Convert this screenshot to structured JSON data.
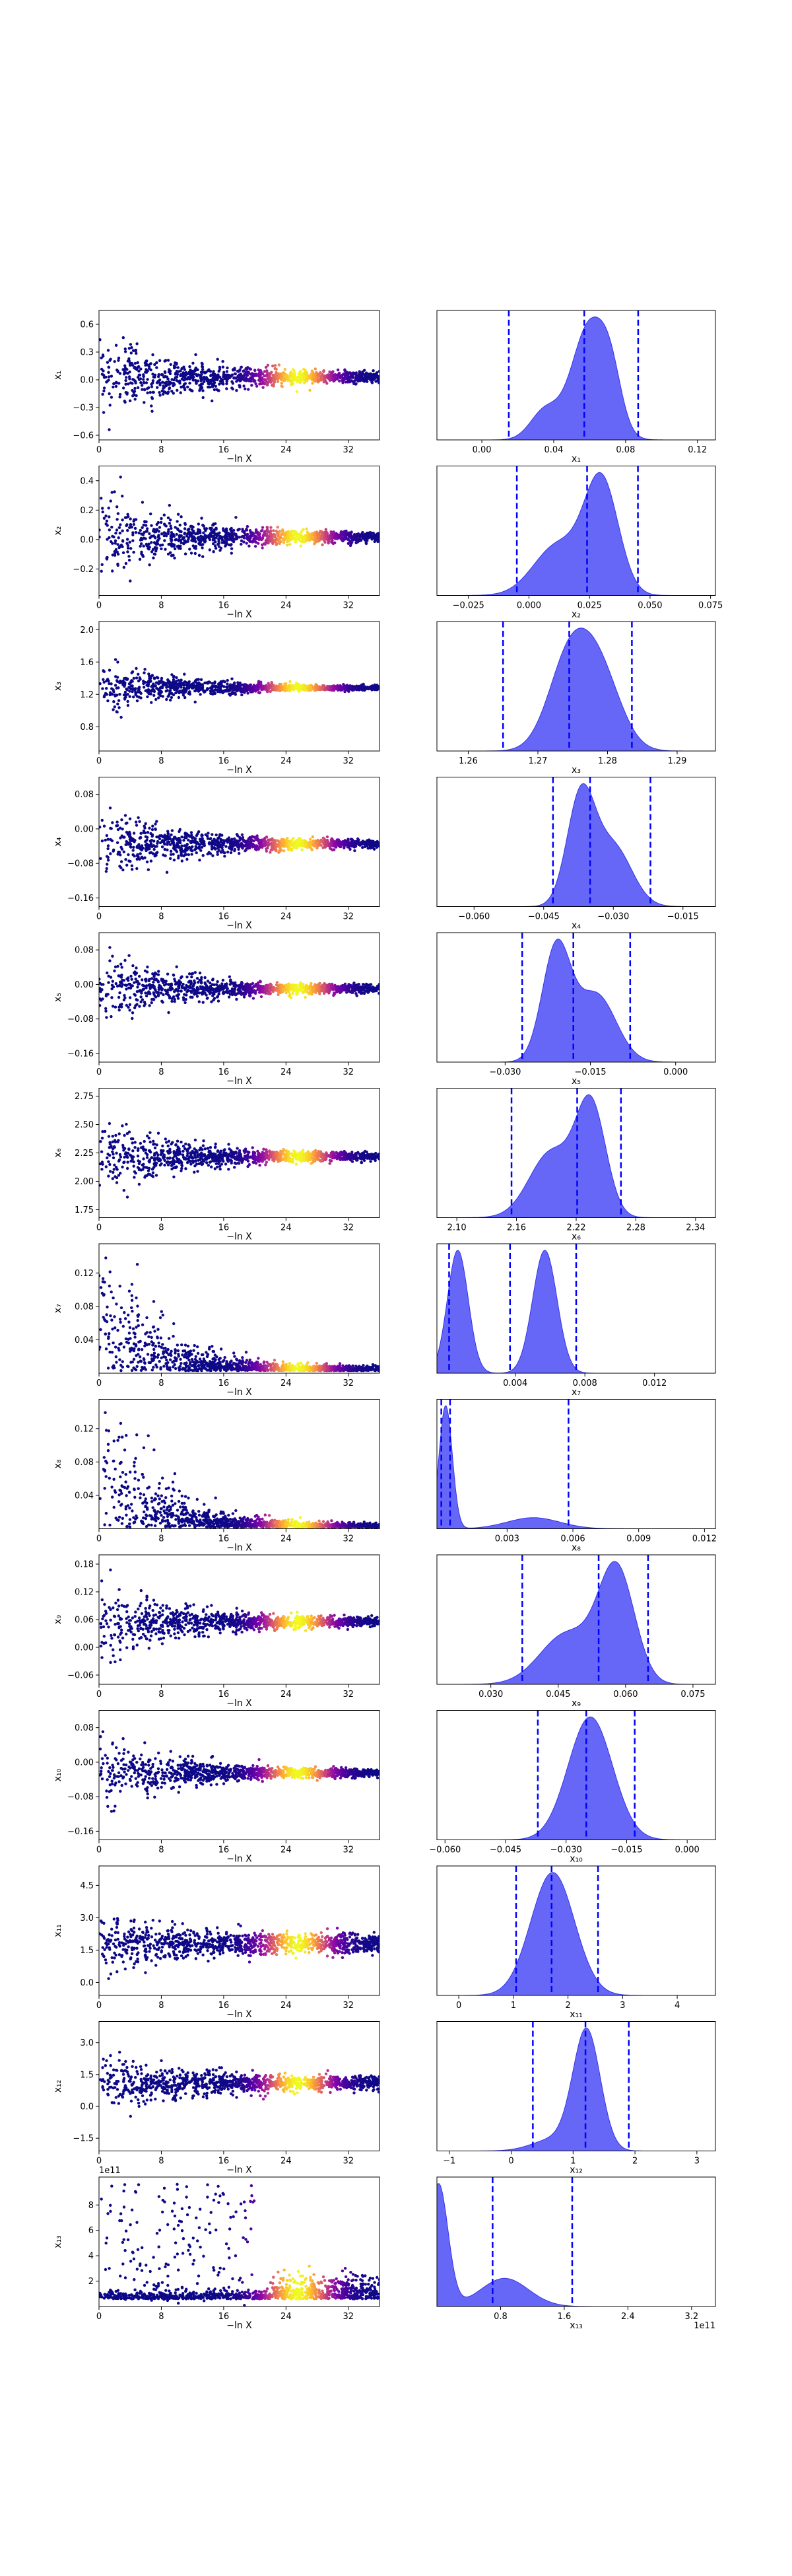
{
  "chart_data": [
    {
      "type": "trace",
      "ylabel": "x₁",
      "xlabel": "−ln X",
      "trace_x_ticks": [
        "0",
        "8",
        "16",
        "24",
        "32"
      ],
      "trace_y_ticks": [
        {
          "v": 0.6,
          "t": "0.6"
        },
        {
          "v": 0.3,
          "t": "0.3"
        },
        {
          "v": 0.0,
          "t": "0.0"
        },
        {
          "v": -0.3,
          "t": "−0.3"
        },
        {
          "v": -0.6,
          "t": "−0.6"
        }
      ],
      "trace_ylim": [
        -0.65,
        0.75
      ],
      "trace_spread": [
        0.42,
        0.05
      ],
      "trace_center": 0.03,
      "marg_xlabel": "x₁",
      "marg_xlim": [
        -0.025,
        0.13
      ],
      "marg_ticks": [
        {
          "v": 0.0,
          "t": "0.00"
        },
        {
          "v": 0.04,
          "t": "0.04"
        },
        {
          "v": 0.08,
          "t": "0.08"
        },
        {
          "v": 0.12,
          "t": "0.12"
        }
      ],
      "quantiles": [
        0.015,
        0.057,
        0.087
      ],
      "density": [
        {
          "m": 0.035,
          "s": 0.008,
          "w": 0.25
        },
        {
          "m": 0.06,
          "s": 0.01,
          "w": 1.0
        },
        {
          "m": 0.072,
          "s": 0.006,
          "w": 0.35
        }
      ]
    },
    {
      "type": "trace",
      "ylabel": "x₂",
      "xlabel": "−ln X",
      "trace_x_ticks": [
        "0",
        "8",
        "16",
        "24",
        "32"
      ],
      "trace_y_ticks": [
        {
          "v": 0.4,
          "t": "0.4"
        },
        {
          "v": 0.2,
          "t": "0.2"
        },
        {
          "v": 0.0,
          "t": "0.0"
        },
        {
          "v": -0.2,
          "t": "−0.2"
        }
      ],
      "trace_ylim": [
        -0.38,
        0.5
      ],
      "trace_spread": [
        0.28,
        0.03
      ],
      "trace_center": 0.02,
      "marg_xlabel": "x₂",
      "marg_xlim": [
        -0.038,
        0.077
      ],
      "marg_ticks": [
        {
          "v": -0.025,
          "t": "−0.025"
        },
        {
          "v": 0.0,
          "t": "0.000"
        },
        {
          "v": 0.025,
          "t": "0.025"
        },
        {
          "v": 0.05,
          "t": "0.050"
        },
        {
          "v": 0.075,
          "t": "0.075"
        }
      ],
      "quantiles": [
        -0.005,
        0.024,
        0.045
      ],
      "density": [
        {
          "m": 0.012,
          "s": 0.01,
          "w": 0.45
        },
        {
          "m": 0.03,
          "s": 0.007,
          "w": 1.0
        }
      ]
    },
    {
      "type": "trace",
      "ylabel": "x₃",
      "xlabel": "−ln X",
      "trace_x_ticks": [
        "0",
        "8",
        "16",
        "24",
        "32"
      ],
      "trace_y_ticks": [
        {
          "v": 2.0,
          "t": "2.0"
        },
        {
          "v": 1.6,
          "t": "1.6"
        },
        {
          "v": 1.2,
          "t": "1.2"
        },
        {
          "v": 0.8,
          "t": "0.8"
        }
      ],
      "trace_ylim": [
        0.5,
        2.1
      ],
      "trace_spread": [
        0.35,
        0.02
      ],
      "trace_center": 1.28,
      "marg_xlabel": "x₃",
      "marg_xlim": [
        1.2555,
        1.2955
      ],
      "marg_ticks": [
        {
          "v": 1.26,
          "t": "1.26"
        },
        {
          "v": 1.27,
          "t": "1.27"
        },
        {
          "v": 1.28,
          "t": "1.28"
        },
        {
          "v": 1.29,
          "t": "1.29"
        }
      ],
      "quantiles": [
        1.265,
        1.2745,
        1.2835
      ],
      "density": [
        {
          "m": 1.2745,
          "s": 0.003,
          "w": 1.0
        },
        {
          "m": 1.279,
          "s": 0.003,
          "w": 0.8
        }
      ]
    },
    {
      "type": "trace",
      "ylabel": "x₄",
      "xlabel": "−ln X",
      "trace_x_ticks": [
        "0",
        "8",
        "16",
        "24",
        "32"
      ],
      "trace_y_ticks": [
        {
          "v": 0.08,
          "t": "0.08"
        },
        {
          "v": 0.0,
          "t": "0.00"
        },
        {
          "v": -0.08,
          "t": "−0.08"
        },
        {
          "v": -0.16,
          "t": "−0.16"
        }
      ],
      "trace_ylim": [
        -0.18,
        0.12
      ],
      "trace_spread": [
        0.08,
        0.008
      ],
      "trace_center": -0.035,
      "marg_xlabel": "x₄",
      "marg_xlim": [
        -0.068,
        -0.008
      ],
      "marg_ticks": [
        {
          "v": -0.06,
          "t": "−0.060"
        },
        {
          "v": -0.045,
          "t": "−0.045"
        },
        {
          "v": -0.03,
          "t": "−0.030"
        },
        {
          "v": -0.015,
          "t": "−0.015"
        }
      ],
      "quantiles": [
        -0.043,
        -0.035,
        -0.022
      ],
      "density": [
        {
          "m": -0.037,
          "s": 0.003,
          "w": 1.0
        },
        {
          "m": -0.03,
          "s": 0.004,
          "w": 0.55
        }
      ]
    },
    {
      "type": "trace",
      "ylabel": "x₅",
      "xlabel": "−ln X",
      "trace_x_ticks": [
        "0",
        "8",
        "16",
        "24",
        "32"
      ],
      "trace_y_ticks": [
        {
          "v": 0.08,
          "t": "0.08"
        },
        {
          "v": 0.0,
          "t": "0.00"
        },
        {
          "v": -0.08,
          "t": "−0.08"
        },
        {
          "v": -0.16,
          "t": "−0.16"
        }
      ],
      "trace_ylim": [
        -0.18,
        0.12
      ],
      "trace_spread": [
        0.08,
        0.008
      ],
      "trace_center": -0.01,
      "marg_xlabel": "x₅",
      "marg_xlim": [
        -0.042,
        0.007
      ],
      "marg_ticks": [
        {
          "v": -0.03,
          "t": "−0.030"
        },
        {
          "v": -0.015,
          "t": "−0.015"
        },
        {
          "v": 0.0,
          "t": "0.000"
        }
      ],
      "quantiles": [
        -0.027,
        -0.018,
        -0.008
      ],
      "density": [
        {
          "m": -0.021,
          "s": 0.0025,
          "w": 1.0
        },
        {
          "m": -0.014,
          "s": 0.0035,
          "w": 0.6
        }
      ]
    },
    {
      "type": "trace",
      "ylabel": "x₆",
      "xlabel": "−ln X",
      "trace_x_ticks": [
        "0",
        "8",
        "16",
        "24",
        "32"
      ],
      "trace_y_ticks": [
        {
          "v": 2.75,
          "t": "2.75"
        },
        {
          "v": 2.5,
          "t": "2.50"
        },
        {
          "v": 2.25,
          "t": "2.25"
        },
        {
          "v": 2.0,
          "t": "2.00"
        },
        {
          "v": 1.75,
          "t": "1.75"
        }
      ],
      "trace_ylim": [
        1.68,
        2.82
      ],
      "trace_spread": [
        0.3,
        0.03
      ],
      "trace_center": 2.22,
      "marg_xlabel": "x₆",
      "marg_xlim": [
        2.08,
        2.36
      ],
      "marg_ticks": [
        {
          "v": 2.1,
          "t": "2.10"
        },
        {
          "v": 2.16,
          "t": "2.16"
        },
        {
          "v": 2.22,
          "t": "2.22"
        },
        {
          "v": 2.28,
          "t": "2.28"
        },
        {
          "v": 2.34,
          "t": "2.34"
        }
      ],
      "quantiles": [
        2.155,
        2.221,
        2.265
      ],
      "density": [
        {
          "m": 2.195,
          "s": 0.022,
          "w": 0.6
        },
        {
          "m": 2.235,
          "s": 0.015,
          "w": 1.0
        }
      ]
    },
    {
      "type": "trace",
      "ylabel": "x₇",
      "xlabel": "−ln X",
      "trace_x_ticks": [
        "0",
        "8",
        "16",
        "24",
        "32"
      ],
      "trace_y_ticks": [
        {
          "v": 0.12,
          "t": "0.12"
        },
        {
          "v": 0.08,
          "t": "0.08"
        },
        {
          "v": 0.04,
          "t": "0.04"
        }
      ],
      "trace_ylim": [
        0.0,
        0.155
      ],
      "trace_spread": [
        0.15,
        0.004
      ],
      "trace_center": 0.003,
      "trace_mode": "decay",
      "marg_xlabel": "x₇",
      "marg_xlim": [
        -0.0005,
        0.0155
      ],
      "marg_ticks": [
        {
          "v": 0.004,
          "t": "0.004"
        },
        {
          "v": 0.008,
          "t": "0.008"
        },
        {
          "v": 0.012,
          "t": "0.012"
        }
      ],
      "quantiles": [
        0.0002,
        0.0037,
        0.0075
      ],
      "density": [
        {
          "m": 0.0007,
          "s": 0.0006,
          "w": 1.0
        },
        {
          "m": 0.0057,
          "s": 0.0007,
          "w": 1.0
        }
      ]
    },
    {
      "type": "trace",
      "ylabel": "x₈",
      "xlabel": "−ln X",
      "trace_x_ticks": [
        "0",
        "8",
        "16",
        "24",
        "32"
      ],
      "trace_y_ticks": [
        {
          "v": 0.12,
          "t": "0.12"
        },
        {
          "v": 0.08,
          "t": "0.08"
        },
        {
          "v": 0.04,
          "t": "0.04"
        }
      ],
      "trace_ylim": [
        0.0,
        0.155
      ],
      "trace_spread": [
        0.15,
        0.003
      ],
      "trace_center": 0.002,
      "trace_mode": "decay",
      "marg_xlabel": "x₈",
      "marg_xlim": [
        -0.0002,
        0.0125
      ],
      "marg_ticks": [
        {
          "v": 0.003,
          "t": "0.003"
        },
        {
          "v": 0.006,
          "t": "0.006"
        },
        {
          "v": 0.009,
          "t": "0.009"
        },
        {
          "v": 0.012,
          "t": "0.012"
        }
      ],
      "quantiles": [
        0.0,
        0.0004,
        0.0058
      ],
      "density": [
        {
          "m": 0.0002,
          "s": 0.0003,
          "w": 1.0
        },
        {
          "m": 0.0042,
          "s": 0.0012,
          "w": 0.09
        }
      ]
    },
    {
      "type": "trace",
      "ylabel": "x₉",
      "xlabel": "−ln X",
      "trace_x_ticks": [
        "0",
        "8",
        "16",
        "24",
        "32"
      ],
      "trace_y_ticks": [
        {
          "v": 0.18,
          "t": "0.18"
        },
        {
          "v": 0.12,
          "t": "0.12"
        },
        {
          "v": 0.06,
          "t": "0.06"
        },
        {
          "v": 0.0,
          "t": "0.00"
        },
        {
          "v": -0.06,
          "t": "−0.06"
        }
      ],
      "trace_ylim": [
        -0.08,
        0.2
      ],
      "trace_spread": [
        0.085,
        0.008
      ],
      "trace_center": 0.055,
      "marg_xlabel": "x₉",
      "marg_xlim": [
        0.018,
        0.08
      ],
      "marg_ticks": [
        {
          "v": 0.03,
          "t": "0.030"
        },
        {
          "v": 0.045,
          "t": "0.045"
        },
        {
          "v": 0.06,
          "t": "0.060"
        },
        {
          "v": 0.075,
          "t": "0.075"
        }
      ],
      "quantiles": [
        0.037,
        0.054,
        0.065
      ],
      "density": [
        {
          "m": 0.047,
          "s": 0.006,
          "w": 0.45
        },
        {
          "m": 0.058,
          "s": 0.004,
          "w": 1.0
        }
      ]
    },
    {
      "type": "trace",
      "ylabel": "x₁₀",
      "xlabel": "−ln X",
      "trace_x_ticks": [
        "0",
        "8",
        "16",
        "24",
        "32"
      ],
      "trace_y_ticks": [
        {
          "v": 0.08,
          "t": "0.08"
        },
        {
          "v": 0.0,
          "t": "0.00"
        },
        {
          "v": -0.08,
          "t": "−0.08"
        },
        {
          "v": -0.16,
          "t": "−0.16"
        }
      ],
      "trace_ylim": [
        -0.18,
        0.12
      ],
      "trace_spread": [
        0.08,
        0.008
      ],
      "trace_center": -0.025,
      "marg_xlabel": "x₁₀",
      "marg_xlim": [
        -0.062,
        0.007
      ],
      "marg_ticks": [
        {
          "v": -0.06,
          "t": "−0.060"
        },
        {
          "v": -0.045,
          "t": "−0.045"
        },
        {
          "v": -0.03,
          "t": "−0.030"
        },
        {
          "v": -0.015,
          "t": "−0.015"
        },
        {
          "v": 0.0,
          "t": "0.000"
        }
      ],
      "quantiles": [
        -0.037,
        -0.025,
        -0.013
      ],
      "density": [
        {
          "m": -0.024,
          "s": 0.0055,
          "w": 1.0
        }
      ]
    },
    {
      "type": "trace",
      "ylabel": "x₁₁",
      "xlabel": "−ln X",
      "trace_x_ticks": [
        "0",
        "8",
        "16",
        "24",
        "32"
      ],
      "trace_y_ticks": [
        {
          "v": 4.5,
          "t": "4.5"
        },
        {
          "v": 3.0,
          "t": "3.0"
        },
        {
          "v": 1.5,
          "t": "1.5"
        },
        {
          "v": 0.0,
          "t": "0.0"
        }
      ],
      "trace_ylim": [
        -0.6,
        5.4
      ],
      "trace_spread": [
        1.2,
        0.4
      ],
      "trace_center": 1.8,
      "marg_xlabel": "x₁₁",
      "marg_xlim": [
        -0.4,
        4.7
      ],
      "marg_ticks": [
        {
          "v": 0,
          "t": "0"
        },
        {
          "v": 1,
          "t": "1"
        },
        {
          "v": 2,
          "t": "2"
        },
        {
          "v": 3,
          "t": "3"
        },
        {
          "v": 4,
          "t": "4"
        }
      ],
      "quantiles": [
        1.05,
        1.7,
        2.55
      ],
      "density": [
        {
          "m": 1.72,
          "s": 0.4,
          "w": 1.0
        }
      ]
    },
    {
      "type": "trace",
      "ylabel": "x₁₂",
      "xlabel": "−ln X",
      "trace_x_ticks": [
        "0",
        "8",
        "16",
        "24",
        "32"
      ],
      "trace_y_ticks": [
        {
          "v": 3.0,
          "t": "3.0"
        },
        {
          "v": 1.5,
          "t": "1.5"
        },
        {
          "v": 0.0,
          "t": "0.0"
        },
        {
          "v": -1.5,
          "t": "−1.5"
        }
      ],
      "trace_ylim": [
        -2.1,
        4.0
      ],
      "trace_spread": [
        1.1,
        0.3
      ],
      "trace_center": 1.1,
      "marg_xlabel": "x₁₂",
      "marg_xlim": [
        -1.2,
        3.3
      ],
      "marg_ticks": [
        {
          "v": -1,
          "t": "−1"
        },
        {
          "v": 0,
          "t": "0"
        },
        {
          "v": 1,
          "t": "1"
        },
        {
          "v": 2,
          "t": "2"
        },
        {
          "v": 3,
          "t": "3"
        }
      ],
      "quantiles": [
        0.35,
        1.2,
        1.9
      ],
      "density": [
        {
          "m": 1.22,
          "s": 0.22,
          "w": 1.0
        },
        {
          "m": 0.7,
          "s": 0.35,
          "w": 0.1
        }
      ]
    },
    {
      "type": "trace",
      "ylabel": "x₁₃",
      "xlabel": "−ln X",
      "exponent": "1e11",
      "trace_x_ticks": [
        "0",
        "8",
        "16",
        "24",
        "32"
      ],
      "trace_y_ticks": [
        {
          "v": 8,
          "t": "8"
        },
        {
          "v": 6,
          "t": "6"
        },
        {
          "v": 4,
          "t": "4"
        },
        {
          "v": 2,
          "t": "2"
        }
      ],
      "trace_ylim": [
        0,
        10.2
      ],
      "trace_spread": [
        5,
        0.6
      ],
      "trace_center": 0.6,
      "trace_mode": "x13",
      "marg_xlabel": "x₁₃",
      "marg_xlim": [
        0,
        3.5
      ],
      "marg_ticks": [
        {
          "v": 0.8,
          "t": "0.8"
        },
        {
          "v": 1.6,
          "t": "1.6"
        },
        {
          "v": 2.4,
          "t": "2.4"
        },
        {
          "v": 3.2,
          "t": "3.2"
        }
      ],
      "quantiles": [
        0.7,
        1.7,
        null
      ],
      "density": [
        {
          "m": 0.02,
          "s": 0.12,
          "w": 1.0
        },
        {
          "m": 0.85,
          "s": 0.3,
          "w": 0.23
        }
      ]
    }
  ]
}
